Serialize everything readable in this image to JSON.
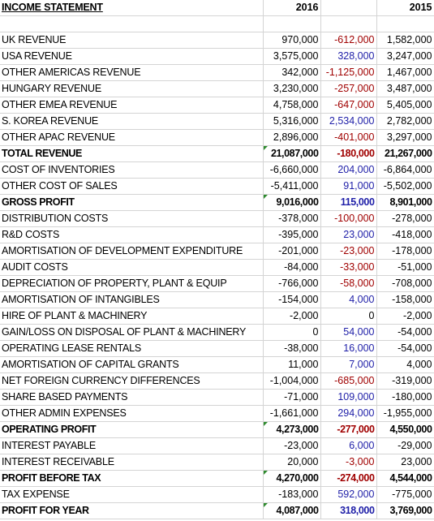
{
  "header": {
    "title": "INCOME STATEMENT",
    "col_2016": "2016",
    "col_diff": "",
    "col_2015": "2015"
  },
  "colors": {
    "positive_diff": "#1f1fa8",
    "negative_diff": "#a00000",
    "error_flag": "#2e8b2e"
  },
  "rows": [
    {
      "label": "UK REVENUE",
      "y2016": "970,000",
      "diff": "-612,000",
      "y2015": "1,582,000"
    },
    {
      "label": "USA REVENUE",
      "y2016": "3,575,000",
      "diff": "328,000",
      "y2015": "3,247,000"
    },
    {
      "label": "OTHER AMERICAS REVENUE",
      "y2016": "342,000",
      "diff": "-1,125,000",
      "y2015": "1,467,000"
    },
    {
      "label": "HUNGARY REVENUE",
      "y2016": "3,230,000",
      "diff": "-257,000",
      "y2015": "3,487,000"
    },
    {
      "label": "OTHER EMEA REVENUE",
      "y2016": "4,758,000",
      "diff": "-647,000",
      "y2015": "5,405,000"
    },
    {
      "label": "S. KOREA REVENUE",
      "y2016": "5,316,000",
      "diff": "2,534,000",
      "y2015": "2,782,000"
    },
    {
      "label": "OTHER APAC REVENUE",
      "y2016": "2,896,000",
      "diff": "-401,000",
      "y2015": "3,297,000"
    },
    {
      "label": "TOTAL REVENUE",
      "y2016": "21,087,000",
      "diff": "-180,000",
      "y2015": "21,267,000",
      "bold": true,
      "flag": true
    },
    {
      "label": "COST OF INVENTORIES",
      "y2016": "-6,660,000",
      "diff": "204,000",
      "y2015": "-6,864,000"
    },
    {
      "label": "OTHER COST OF SALES",
      "y2016": "-5,411,000",
      "diff": "91,000",
      "y2015": "-5,502,000"
    },
    {
      "label": "GROSS PROFIT",
      "y2016": "9,016,000",
      "diff": "115,000",
      "y2015": "8,901,000",
      "bold": true,
      "flag": true
    },
    {
      "label": "DISTRIBUTION COSTS",
      "y2016": "-378,000",
      "diff": "-100,000",
      "y2015": "-278,000"
    },
    {
      "label": "R&D COSTS",
      "y2016": "-395,000",
      "diff": "23,000",
      "y2015": "-418,000"
    },
    {
      "label": "AMORTISATION OF DEVELOPMENT EXPENDITURE",
      "y2016": "-201,000",
      "diff": "-23,000",
      "y2015": "-178,000"
    },
    {
      "label": "AUDIT COSTS",
      "y2016": "-84,000",
      "diff": "-33,000",
      "y2015": "-51,000"
    },
    {
      "label": "DEPRECIATION OF PROPERTY, PLANT & EQUIP",
      "y2016": "-766,000",
      "diff": "-58,000",
      "y2015": "-708,000"
    },
    {
      "label": "AMORTISATION OF INTANGIBLES",
      "y2016": "-154,000",
      "diff": "4,000",
      "y2015": "-158,000"
    },
    {
      "label": "HIRE OF PLANT & MACHINERY",
      "y2016": "-2,000",
      "diff": "0",
      "y2015": "-2,000"
    },
    {
      "label": "GAIN/LOSS ON DISPOSAL OF PLANT & MACHINERY",
      "y2016": "0",
      "diff": "54,000",
      "y2015": "-54,000"
    },
    {
      "label": "OPERATING LEASE RENTALS",
      "y2016": "-38,000",
      "diff": "16,000",
      "y2015": "-54,000"
    },
    {
      "label": "AMORTISATION OF CAPITAL GRANTS",
      "y2016": "11,000",
      "diff": "7,000",
      "y2015": "4,000"
    },
    {
      "label": "NET FOREIGN CURRENCY DIFFERENCES",
      "y2016": "-1,004,000",
      "diff": "-685,000",
      "y2015": "-319,000"
    },
    {
      "label": "SHARE BASED PAYMENTS",
      "y2016": "-71,000",
      "diff": "109,000",
      "y2015": "-180,000"
    },
    {
      "label": "OTHER ADMIN EXPENSES",
      "y2016": "-1,661,000",
      "diff": "294,000",
      "y2015": "-1,955,000"
    },
    {
      "label": "OPERATING PROFIT",
      "y2016": "4,273,000",
      "diff": "-277,000",
      "y2015": "4,550,000",
      "bold": true,
      "flag": true
    },
    {
      "label": "INTEREST PAYABLE",
      "y2016": "-23,000",
      "diff": "6,000",
      "y2015": "-29,000"
    },
    {
      "label": "INTEREST RECEIVABLE",
      "y2016": "20,000",
      "diff": "-3,000",
      "y2015": "23,000"
    },
    {
      "label": "PROFIT BEFORE TAX",
      "y2016": "4,270,000",
      "diff": "-274,000",
      "y2015": "4,544,000",
      "bold": true,
      "flag": true
    },
    {
      "label": "TAX EXPENSE",
      "y2016": "-183,000",
      "diff": "592,000",
      "y2015": "-775,000"
    },
    {
      "label": "PROFIT FOR YEAR",
      "y2016": "4,087,000",
      "diff": "318,000",
      "y2015": "3,769,000",
      "bold": true,
      "flag": true
    }
  ]
}
